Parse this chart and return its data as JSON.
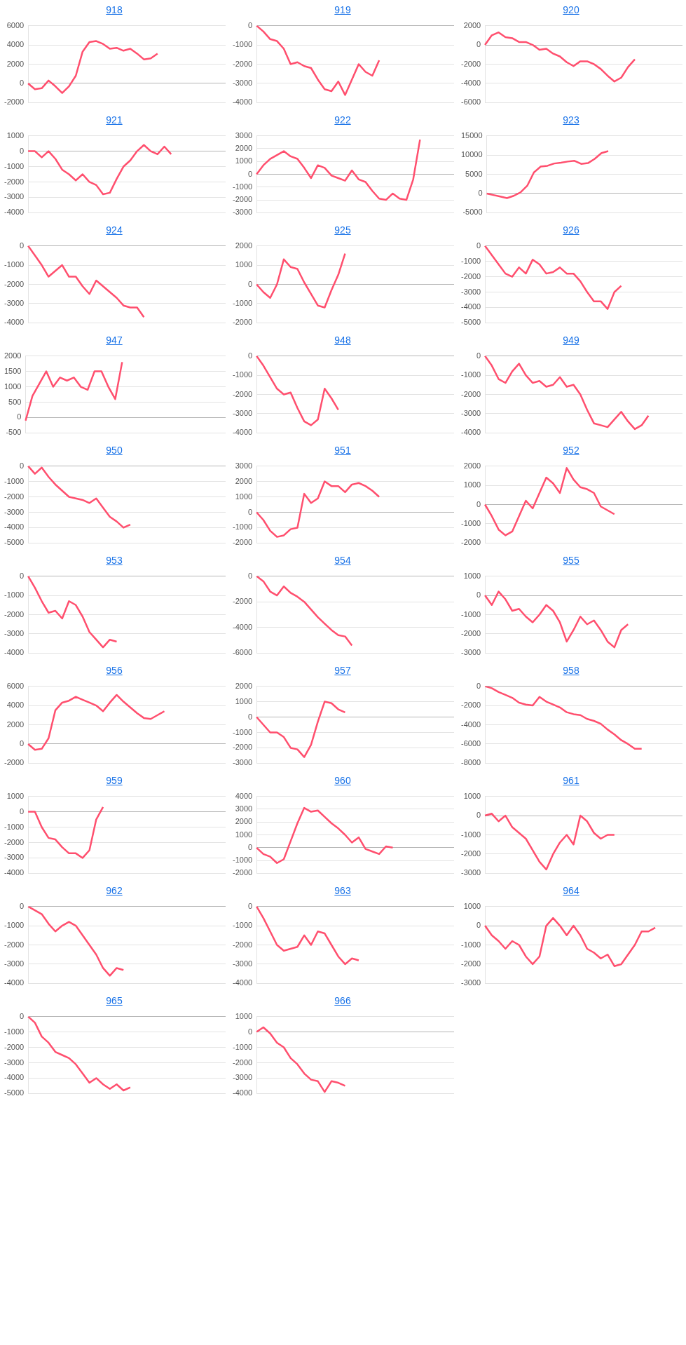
{
  "chart_data": [
    {
      "type": "line",
      "title": "918",
      "color": "#ff4f6e",
      "categories": [
        null,
        null,
        null,
        null,
        null,
        null,
        null,
        null,
        null,
        null,
        null,
        null,
        null,
        null,
        null,
        null,
        null,
        null,
        null,
        null,
        null,
        null,
        null,
        null,
        null,
        null,
        null,
        null,
        null,
        null
      ],
      "values": [
        0,
        -600,
        -500,
        300,
        -300,
        -1000,
        -300,
        800,
        3300,
        4300,
        4400,
        4100,
        3600,
        3700,
        3400,
        3600,
        3100,
        2500,
        2600,
        3100,
        null,
        null,
        null,
        null,
        null,
        null,
        null,
        null,
        null,
        null
      ],
      "ylim": [
        -2000,
        6000
      ],
      "yticks": [
        -2000,
        0,
        2000,
        4000,
        6000
      ],
      "grid": "y",
      "tick_labels": "y"
    },
    {
      "type": "line",
      "title": "919",
      "color": "#ff4f6e",
      "categories": [
        null,
        null,
        null,
        null,
        null,
        null,
        null,
        null,
        null,
        null,
        null,
        null,
        null,
        null,
        null,
        null,
        null,
        null,
        null,
        null,
        null,
        null,
        null,
        null,
        null,
        null,
        null,
        null,
        null,
        null
      ],
      "values": [
        0,
        -300,
        -700,
        -800,
        -1200,
        -2000,
        -1900,
        -2100,
        -2200,
        -2800,
        -3300,
        -3400,
        -2900,
        -3600,
        -2800,
        -2000,
        -2400,
        -2600,
        -1800,
        null,
        null,
        null,
        null,
        null,
        null,
        null,
        null,
        null,
        null,
        null
      ],
      "ylim": [
        -4000,
        0
      ],
      "yticks": [
        -4000,
        -3000,
        -2000,
        -1000,
        0
      ],
      "grid": "y",
      "tick_labels": "y"
    },
    {
      "type": "line",
      "title": "920",
      "color": "#ff4f6e",
      "categories": [
        null,
        null,
        null,
        null,
        null,
        null,
        null,
        null,
        null,
        null,
        null,
        null,
        null,
        null,
        null,
        null,
        null,
        null,
        null,
        null,
        null,
        null,
        null,
        null,
        null,
        null,
        null,
        null,
        null,
        null
      ],
      "values": [
        0,
        1000,
        1300,
        800,
        700,
        300,
        300,
        0,
        -500,
        -400,
        -900,
        -1200,
        -1800,
        -2200,
        -1700,
        -1700,
        -2000,
        -2500,
        -3200,
        -3800,
        -3400,
        -2300,
        -1500,
        null,
        null,
        null,
        null,
        null,
        null,
        null
      ],
      "ylim": [
        -6000,
        2000
      ],
      "yticks": [
        -6000,
        -4000,
        -2000,
        0,
        2000
      ],
      "grid": "y",
      "tick_labels": "y"
    },
    {
      "type": "line",
      "title": "921",
      "color": "#ff4f6e",
      "categories": [
        null,
        null,
        null,
        null,
        null,
        null,
        null,
        null,
        null,
        null,
        null,
        null,
        null,
        null,
        null,
        null,
        null,
        null,
        null,
        null,
        null,
        null,
        null,
        null,
        null,
        null,
        null,
        null,
        null,
        null
      ],
      "values": [
        0,
        0,
        -400,
        0,
        -500,
        -1200,
        -1500,
        -1900,
        -1500,
        -2000,
        -2200,
        -2800,
        -2700,
        -1800,
        -1000,
        -600,
        0,
        400,
        0,
        -200,
        300,
        -200,
        null,
        null,
        null,
        null,
        null,
        null,
        null,
        null
      ],
      "ylim": [
        -4000,
        1000
      ],
      "yticks": [
        -4000,
        -3000,
        -2000,
        -1000,
        0,
        1000
      ],
      "grid": "y",
      "tick_labels": "y"
    },
    {
      "type": "line",
      "title": "922",
      "color": "#ff4f6e",
      "categories": [
        null,
        null,
        null,
        null,
        null,
        null,
        null,
        null,
        null,
        null,
        null,
        null,
        null,
        null,
        null,
        null,
        null,
        null,
        null,
        null,
        null,
        null,
        null,
        null,
        null,
        null,
        null,
        null,
        null,
        null
      ],
      "values": [
        0,
        700,
        1200,
        1500,
        1800,
        1400,
        1200,
        500,
        -300,
        700,
        500,
        -100,
        -300,
        -500,
        300,
        -400,
        -600,
        -1300,
        -1900,
        -2000,
        -1500,
        -1900,
        -2000,
        -400,
        2700,
        null,
        null,
        null,
        null,
        null
      ],
      "ylim": [
        -3000,
        3000
      ],
      "yticks": [
        -3000,
        -2000,
        -1000,
        0,
        1000,
        2000,
        3000
      ],
      "grid": "y",
      "tick_labels": "y"
    },
    {
      "type": "line",
      "title": "923",
      "color": "#ff4f6e",
      "categories": [
        null,
        null,
        null,
        null,
        null,
        null,
        null,
        null,
        null,
        null,
        null,
        null,
        null,
        null,
        null,
        null,
        null,
        null,
        null,
        null,
        null,
        null,
        null,
        null,
        null,
        null,
        null,
        null,
        null,
        null
      ],
      "values": [
        0,
        -400,
        -800,
        -1200,
        -600,
        300,
        2000,
        5500,
        7000,
        7200,
        7800,
        8000,
        8300,
        8500,
        7700,
        7900,
        9000,
        10500,
        11000,
        null,
        null,
        null,
        null,
        null,
        null,
        null,
        null,
        null,
        null,
        null
      ],
      "ylim": [
        -5000,
        15000
      ],
      "yticks": [
        -5000,
        0,
        5000,
        10000,
        15000
      ],
      "grid": "y",
      "tick_labels": "y"
    },
    {
      "type": "line",
      "title": "924",
      "color": "#ff4f6e",
      "categories": [
        null,
        null,
        null,
        null,
        null,
        null,
        null,
        null,
        null,
        null,
        null,
        null,
        null,
        null,
        null,
        null,
        null,
        null,
        null,
        null,
        null,
        null,
        null,
        null,
        null,
        null,
        null,
        null,
        null,
        null
      ],
      "values": [
        0,
        -500,
        -1000,
        -1600,
        -1300,
        -1000,
        -1600,
        -1600,
        -2100,
        -2500,
        -1800,
        -2100,
        -2400,
        -2700,
        -3100,
        -3200,
        -3200,
        -3700,
        null,
        null,
        null,
        null,
        null,
        null,
        null,
        null,
        null,
        null,
        null,
        null
      ],
      "ylim": [
        -4000,
        0
      ],
      "yticks": [
        -4000,
        -3000,
        -2000,
        -1000,
        0
      ],
      "grid": "y",
      "tick_labels": "y"
    },
    {
      "type": "line",
      "title": "925",
      "color": "#ff4f6e",
      "categories": [
        null,
        null,
        null,
        null,
        null,
        null,
        null,
        null,
        null,
        null,
        null,
        null,
        null,
        null,
        null,
        null,
        null,
        null,
        null,
        null,
        null,
        null,
        null,
        null,
        null,
        null,
        null,
        null,
        null,
        null
      ],
      "values": [
        0,
        -400,
        -700,
        0,
        1300,
        900,
        800,
        100,
        -500,
        -1100,
        -1200,
        -300,
        500,
        1600,
        null,
        null,
        null,
        null,
        null,
        null,
        null,
        null,
        null,
        null,
        null,
        null,
        null,
        null,
        null,
        null
      ],
      "ylim": [
        -2000,
        2000
      ],
      "yticks": [
        -2000,
        -1000,
        0,
        1000,
        2000
      ],
      "grid": "y",
      "tick_labels": "y"
    },
    {
      "type": "line",
      "title": "926",
      "color": "#ff4f6e",
      "categories": [
        null,
        null,
        null,
        null,
        null,
        null,
        null,
        null,
        null,
        null,
        null,
        null,
        null,
        null,
        null,
        null,
        null,
        null,
        null,
        null,
        null,
        null,
        null,
        null,
        null,
        null,
        null,
        null,
        null,
        null
      ],
      "values": [
        0,
        -600,
        -1200,
        -1800,
        -2000,
        -1400,
        -1800,
        -900,
        -1200,
        -1800,
        -1700,
        -1400,
        -1800,
        -1800,
        -2300,
        -3000,
        -3600,
        -3600,
        -4100,
        -3000,
        -2600,
        null,
        null,
        null,
        null,
        null,
        null,
        null,
        null,
        null
      ],
      "ylim": [
        -5000,
        0
      ],
      "yticks": [
        -5000,
        -4000,
        -3000,
        -2000,
        -1000,
        0
      ],
      "grid": "y",
      "tick_labels": "y"
    },
    {
      "type": "line",
      "title": "947",
      "color": "#ff4f6e",
      "categories": [
        null,
        null,
        null,
        null,
        null,
        null,
        null,
        null,
        null,
        null,
        null,
        null,
        null,
        null,
        null,
        null,
        null,
        null,
        null,
        null,
        null,
        null,
        null,
        null,
        null,
        null,
        null,
        null,
        null,
        null
      ],
      "values": [
        -100,
        700,
        1100,
        1500,
        1000,
        1300,
        1200,
        1300,
        1000,
        900,
        1500,
        1500,
        1000,
        600,
        1800,
        null,
        null,
        null,
        null,
        null,
        null,
        null,
        null,
        null,
        null,
        null,
        null,
        null,
        null,
        null
      ],
      "ylim": [
        -500,
        2000
      ],
      "yticks": [
        -500,
        0,
        500,
        1000,
        1500,
        2000
      ],
      "grid": "y",
      "tick_labels": "y"
    },
    {
      "type": "line",
      "title": "948",
      "color": "#ff4f6e",
      "categories": [
        null,
        null,
        null,
        null,
        null,
        null,
        null,
        null,
        null,
        null,
        null,
        null,
        null,
        null,
        null,
        null,
        null,
        null,
        null,
        null,
        null,
        null,
        null,
        null,
        null,
        null,
        null,
        null,
        null,
        null
      ],
      "values": [
        0,
        -500,
        -1100,
        -1700,
        -2000,
        -1900,
        -2700,
        -3400,
        -3600,
        -3300,
        -1700,
        -2200,
        -2800,
        null,
        null,
        null,
        null,
        null,
        null,
        null,
        null,
        null,
        null,
        null,
        null,
        null,
        null,
        null,
        null,
        null
      ],
      "ylim": [
        -4000,
        0
      ],
      "yticks": [
        -4000,
        -3000,
        -2000,
        -1000,
        0
      ],
      "grid": "y",
      "tick_labels": "y"
    },
    {
      "type": "line",
      "title": "949",
      "color": "#ff4f6e",
      "categories": [
        null,
        null,
        null,
        null,
        null,
        null,
        null,
        null,
        null,
        null,
        null,
        null,
        null,
        null,
        null,
        null,
        null,
        null,
        null,
        null,
        null,
        null,
        null,
        null,
        null,
        null,
        null,
        null,
        null,
        null
      ],
      "values": [
        0,
        -500,
        -1200,
        -1400,
        -800,
        -400,
        -1000,
        -1400,
        -1300,
        -1600,
        -1500,
        -1100,
        -1600,
        -1500,
        -2000,
        -2800,
        -3500,
        -3600,
        -3700,
        -3300,
        -2900,
        -3400,
        -3800,
        -3600,
        -3100,
        null,
        null,
        null,
        null,
        null
      ],
      "ylim": [
        -4000,
        0
      ],
      "yticks": [
        -4000,
        -3000,
        -2000,
        -1000,
        0
      ],
      "grid": "y",
      "tick_labels": "y"
    },
    {
      "type": "line",
      "title": "950",
      "color": "#ff4f6e",
      "categories": [
        null,
        null,
        null,
        null,
        null,
        null,
        null,
        null,
        null,
        null,
        null,
        null,
        null,
        null,
        null,
        null,
        null,
        null,
        null,
        null,
        null,
        null,
        null,
        null,
        null,
        null,
        null,
        null,
        null,
        null
      ],
      "values": [
        0,
        -500,
        -100,
        -700,
        -1200,
        -1600,
        -2000,
        -2100,
        -2200,
        -2400,
        -2100,
        -2700,
        -3300,
        -3600,
        -4000,
        -3800,
        null,
        null,
        null,
        null,
        null,
        null,
        null,
        null,
        null,
        null,
        null,
        null,
        null,
        null
      ],
      "ylim": [
        -5000,
        0
      ],
      "yticks": [
        -5000,
        -4000,
        -3000,
        -2000,
        -1000,
        0
      ],
      "grid": "y",
      "tick_labels": "y"
    },
    {
      "type": "line",
      "title": "951",
      "color": "#ff4f6e",
      "categories": [
        null,
        null,
        null,
        null,
        null,
        null,
        null,
        null,
        null,
        null,
        null,
        null,
        null,
        null,
        null,
        null,
        null,
        null,
        null,
        null,
        null,
        null,
        null,
        null,
        null,
        null,
        null,
        null,
        null,
        null
      ],
      "values": [
        0,
        -500,
        -1200,
        -1600,
        -1500,
        -1100,
        -1000,
        1200,
        600,
        900,
        2000,
        1700,
        1700,
        1300,
        1800,
        1900,
        1700,
        1400,
        1000,
        null,
        null,
        null,
        null,
        null,
        null,
        null,
        null,
        null,
        null,
        null
      ],
      "ylim": [
        -2000,
        3000
      ],
      "yticks": [
        -2000,
        -1000,
        0,
        1000,
        2000,
        3000
      ],
      "grid": "y",
      "tick_labels": "y"
    },
    {
      "type": "line",
      "title": "952",
      "color": "#ff4f6e",
      "categories": [
        null,
        null,
        null,
        null,
        null,
        null,
        null,
        null,
        null,
        null,
        null,
        null,
        null,
        null,
        null,
        null,
        null,
        null,
        null,
        null,
        null,
        null,
        null,
        null,
        null,
        null,
        null,
        null,
        null,
        null
      ],
      "values": [
        0,
        -600,
        -1300,
        -1600,
        -1400,
        -600,
        200,
        -200,
        600,
        1400,
        1100,
        600,
        1900,
        1300,
        900,
        800,
        600,
        -100,
        -300,
        -500,
        null,
        null,
        null,
        null,
        null,
        null,
        null,
        null,
        null,
        null
      ],
      "ylim": [
        -2000,
        2000
      ],
      "yticks": [
        -2000,
        -1000,
        0,
        1000,
        2000
      ],
      "grid": "y",
      "tick_labels": "y"
    },
    {
      "type": "line",
      "title": "953",
      "color": "#ff4f6e",
      "categories": [
        null,
        null,
        null,
        null,
        null,
        null,
        null,
        null,
        null,
        null,
        null,
        null,
        null,
        null,
        null,
        null,
        null,
        null,
        null,
        null,
        null,
        null,
        null,
        null,
        null,
        null,
        null,
        null,
        null,
        null
      ],
      "values": [
        0,
        -600,
        -1300,
        -1900,
        -1800,
        -2200,
        -1300,
        -1500,
        -2100,
        -2900,
        -3300,
        -3700,
        -3300,
        -3400,
        null,
        null,
        null,
        null,
        null,
        null,
        null,
        null,
        null,
        null,
        null,
        null,
        null,
        null,
        null,
        null
      ],
      "ylim": [
        -4000,
        0
      ],
      "yticks": [
        -4000,
        -3000,
        -2000,
        -1000,
        0
      ],
      "grid": "y",
      "tick_labels": "y"
    },
    {
      "type": "line",
      "title": "954",
      "color": "#ff4f6e",
      "categories": [
        null,
        null,
        null,
        null,
        null,
        null,
        null,
        null,
        null,
        null,
        null,
        null,
        null,
        null,
        null,
        null,
        null,
        null,
        null,
        null,
        null,
        null,
        null,
        null,
        null,
        null,
        null,
        null,
        null,
        null
      ],
      "values": [
        0,
        -400,
        -1200,
        -1500,
        -800,
        -1300,
        -1600,
        -2000,
        -2600,
        -3200,
        -3700,
        -4200,
        -4600,
        -4700,
        -5400,
        null,
        null,
        null,
        null,
        null,
        null,
        null,
        null,
        null,
        null,
        null,
        null,
        null,
        null,
        null
      ],
      "ylim": [
        -6000,
        0
      ],
      "yticks": [
        -6000,
        -4000,
        -2000,
        0
      ],
      "grid": "y",
      "tick_labels": "y"
    },
    {
      "type": "line",
      "title": "955",
      "color": "#ff4f6e",
      "categories": [
        null,
        null,
        null,
        null,
        null,
        null,
        null,
        null,
        null,
        null,
        null,
        null,
        null,
        null,
        null,
        null,
        null,
        null,
        null,
        null,
        null,
        null,
        null,
        null,
        null,
        null,
        null,
        null,
        null,
        null
      ],
      "values": [
        0,
        -500,
        200,
        -200,
        -800,
        -700,
        -1100,
        -1400,
        -1000,
        -500,
        -800,
        -1400,
        -2400,
        -1800,
        -1100,
        -1500,
        -1300,
        -1800,
        -2400,
        -2700,
        -1800,
        -1500,
        null,
        null,
        null,
        null,
        null,
        null,
        null,
        null
      ],
      "ylim": [
        -3000,
        1000
      ],
      "yticks": [
        -3000,
        -2000,
        -1000,
        0,
        1000
      ],
      "grid": "y",
      "tick_labels": "y"
    },
    {
      "type": "line",
      "title": "956",
      "color": "#ff4f6e",
      "categories": [
        null,
        null,
        null,
        null,
        null,
        null,
        null,
        null,
        null,
        null,
        null,
        null,
        null,
        null,
        null,
        null,
        null,
        null,
        null,
        null,
        null,
        null,
        null,
        null,
        null,
        null,
        null,
        null,
        null,
        null
      ],
      "values": [
        0,
        -600,
        -500,
        600,
        3500,
        4300,
        4500,
        4900,
        4600,
        4300,
        4000,
        3400,
        4300,
        5100,
        4400,
        3800,
        3200,
        2700,
        2600,
        3000,
        3400,
        null,
        null,
        null,
        null,
        null,
        null,
        null,
        null,
        null
      ],
      "ylim": [
        -2000,
        6000
      ],
      "yticks": [
        -2000,
        0,
        2000,
        4000,
        6000
      ],
      "grid": "y",
      "tick_labels": "y"
    },
    {
      "type": "line",
      "title": "957",
      "color": "#ff4f6e",
      "categories": [
        null,
        null,
        null,
        null,
        null,
        null,
        null,
        null,
        null,
        null,
        null,
        null,
        null,
        null,
        null,
        null,
        null,
        null,
        null,
        null,
        null,
        null,
        null,
        null,
        null,
        null,
        null,
        null,
        null,
        null
      ],
      "values": [
        0,
        -500,
        -1000,
        -1000,
        -1300,
        -2000,
        -2100,
        -2600,
        -1800,
        -300,
        1000,
        900,
        500,
        300,
        null,
        null,
        null,
        null,
        null,
        null,
        null,
        null,
        null,
        null,
        null,
        null,
        null,
        null,
        null,
        null
      ],
      "ylim": [
        -3000,
        2000
      ],
      "yticks": [
        -3000,
        -2000,
        -1000,
        0,
        1000,
        2000
      ],
      "grid": "y",
      "tick_labels": "y"
    },
    {
      "type": "line",
      "title": "958",
      "color": "#ff4f6e",
      "categories": [
        null,
        null,
        null,
        null,
        null,
        null,
        null,
        null,
        null,
        null,
        null,
        null,
        null,
        null,
        null,
        null,
        null,
        null,
        null,
        null,
        null,
        null,
        null,
        null,
        null,
        null,
        null,
        null,
        null,
        null
      ],
      "values": [
        0,
        -200,
        -600,
        -900,
        -1200,
        -1700,
        -1900,
        -2000,
        -1100,
        -1600,
        -1900,
        -2200,
        -2700,
        -2900,
        -3000,
        -3400,
        -3600,
        -3900,
        -4500,
        -5000,
        -5600,
        -6000,
        -6500,
        -6500,
        null,
        null,
        null,
        null,
        null,
        null
      ],
      "ylim": [
        -8000,
        0
      ],
      "yticks": [
        -8000,
        -6000,
        -4000,
        -2000,
        0
      ],
      "grid": "y",
      "tick_labels": "y"
    },
    {
      "type": "line",
      "title": "959",
      "color": "#ff4f6e",
      "categories": [
        null,
        null,
        null,
        null,
        null,
        null,
        null,
        null,
        null,
        null,
        null,
        null,
        null,
        null,
        null,
        null,
        null,
        null,
        null,
        null,
        null,
        null,
        null,
        null,
        null,
        null,
        null,
        null,
        null,
        null
      ],
      "values": [
        0,
        0,
        -1000,
        -1700,
        -1800,
        -2300,
        -2700,
        -2700,
        -3000,
        -2500,
        -500,
        300,
        null,
        null,
        null,
        null,
        null,
        null,
        null,
        null,
        null,
        null,
        null,
        null,
        null,
        null,
        null,
        null,
        null,
        null
      ],
      "ylim": [
        -4000,
        1000
      ],
      "yticks": [
        -4000,
        -3000,
        -2000,
        -1000,
        0,
        1000
      ],
      "grid": "y",
      "tick_labels": "y"
    },
    {
      "type": "line",
      "title": "960",
      "color": "#ff4f6e",
      "categories": [
        null,
        null,
        null,
        null,
        null,
        null,
        null,
        null,
        null,
        null,
        null,
        null,
        null,
        null,
        null,
        null,
        null,
        null,
        null,
        null,
        null,
        null,
        null,
        null,
        null,
        null,
        null,
        null,
        null,
        null
      ],
      "values": [
        0,
        -500,
        -700,
        -1200,
        -900,
        500,
        1900,
        3100,
        2800,
        2900,
        2400,
        1900,
        1500,
        1000,
        400,
        800,
        -100,
        -300,
        -500,
        100,
        0,
        null,
        null,
        null,
        null,
        null,
        null,
        null,
        null,
        null
      ],
      "ylim": [
        -2000,
        4000
      ],
      "yticks": [
        -2000,
        -1000,
        0,
        1000,
        2000,
        3000,
        4000
      ],
      "grid": "y",
      "tick_labels": "y"
    },
    {
      "type": "line",
      "title": "961",
      "color": "#ff4f6e",
      "categories": [
        null,
        null,
        null,
        null,
        null,
        null,
        null,
        null,
        null,
        null,
        null,
        null,
        null,
        null,
        null,
        null,
        null,
        null,
        null,
        null,
        null,
        null,
        null,
        null,
        null,
        null,
        null,
        null,
        null,
        null
      ],
      "values": [
        0,
        100,
        -300,
        0,
        -600,
        -900,
        -1200,
        -1800,
        -2400,
        -2800,
        -2000,
        -1400,
        -1000,
        -1500,
        0,
        -300,
        -900,
        -1200,
        -1000,
        -1000,
        null,
        null,
        null,
        null,
        null,
        null,
        null,
        null,
        null,
        null
      ],
      "ylim": [
        -3000,
        1000
      ],
      "yticks": [
        -3000,
        -2000,
        -1000,
        0,
        1000
      ],
      "grid": "y",
      "tick_labels": "y"
    },
    {
      "type": "line",
      "title": "962",
      "color": "#ff4f6e",
      "categories": [
        null,
        null,
        null,
        null,
        null,
        null,
        null,
        null,
        null,
        null,
        null,
        null,
        null,
        null,
        null,
        null,
        null,
        null,
        null,
        null,
        null,
        null,
        null,
        null,
        null,
        null,
        null,
        null,
        null,
        null
      ],
      "values": [
        0,
        -200,
        -400,
        -900,
        -1300,
        -1000,
        -800,
        -1000,
        -1500,
        -2000,
        -2500,
        -3200,
        -3600,
        -3200,
        -3300,
        null,
        null,
        null,
        null,
        null,
        null,
        null,
        null,
        null,
        null,
        null,
        null,
        null,
        null,
        null
      ],
      "ylim": [
        -4000,
        0
      ],
      "yticks": [
        -4000,
        -3000,
        -2000,
        -1000,
        0
      ],
      "grid": "y",
      "tick_labels": "y"
    },
    {
      "type": "line",
      "title": "963",
      "color": "#ff4f6e",
      "categories": [
        null,
        null,
        null,
        null,
        null,
        null,
        null,
        null,
        null,
        null,
        null,
        null,
        null,
        null,
        null,
        null,
        null,
        null,
        null,
        null,
        null,
        null,
        null,
        null,
        null,
        null,
        null,
        null,
        null,
        null
      ],
      "values": [
        0,
        -600,
        -1300,
        -2000,
        -2300,
        -2200,
        -2100,
        -1500,
        -2000,
        -1300,
        -1400,
        -2000,
        -2600,
        -3000,
        -2700,
        -2800,
        null,
        null,
        null,
        null,
        null,
        null,
        null,
        null,
        null,
        null,
        null,
        null,
        null,
        null
      ],
      "ylim": [
        -4000,
        0
      ],
      "yticks": [
        -4000,
        -3000,
        -2000,
        -1000,
        0
      ],
      "grid": "y",
      "tick_labels": "y"
    },
    {
      "type": "line",
      "title": "964",
      "color": "#ff4f6e",
      "categories": [
        null,
        null,
        null,
        null,
        null,
        null,
        null,
        null,
        null,
        null,
        null,
        null,
        null,
        null,
        null,
        null,
        null,
        null,
        null,
        null,
        null,
        null,
        null,
        null,
        null,
        null,
        null,
        null,
        null,
        null
      ],
      "values": [
        0,
        -500,
        -800,
        -1200,
        -800,
        -1000,
        -1600,
        -2000,
        -1600,
        0,
        400,
        0,
        -500,
        0,
        -500,
        -1200,
        -1400,
        -1700,
        -1500,
        -2100,
        -2000,
        -1500,
        -1000,
        -300,
        -300,
        -100,
        null,
        null,
        null,
        null
      ],
      "ylim": [
        -3000,
        1000
      ],
      "yticks": [
        -3000,
        -2000,
        -1000,
        0,
        1000
      ],
      "grid": "y",
      "tick_labels": "y"
    },
    {
      "type": "line",
      "title": "965",
      "color": "#ff4f6e",
      "categories": [
        null,
        null,
        null,
        null,
        null,
        null,
        null,
        null,
        null,
        null,
        null,
        null,
        null,
        null,
        null,
        null,
        null,
        null,
        null,
        null,
        null,
        null,
        null,
        null,
        null,
        null,
        null,
        null,
        null,
        null
      ],
      "values": [
        0,
        -400,
        -1300,
        -1700,
        -2300,
        -2500,
        -2700,
        -3100,
        -3700,
        -4300,
        -4000,
        -4400,
        -4700,
        -4400,
        -4800,
        -4600,
        null,
        null,
        null,
        null,
        null,
        null,
        null,
        null,
        null,
        null,
        null,
        null,
        null,
        null
      ],
      "ylim": [
        -5000,
        0
      ],
      "yticks": [
        -5000,
        -4000,
        -3000,
        -2000,
        -1000,
        0
      ],
      "grid": "y",
      "tick_labels": "y"
    },
    {
      "type": "line",
      "title": "966",
      "color": "#ff4f6e",
      "categories": [
        null,
        null,
        null,
        null,
        null,
        null,
        null,
        null,
        null,
        null,
        null,
        null,
        null,
        null,
        null,
        null,
        null,
        null,
        null,
        null,
        null,
        null,
        null,
        null,
        null,
        null,
        null,
        null,
        null,
        null
      ],
      "values": [
        0,
        300,
        -100,
        -700,
        -1000,
        -1700,
        -2100,
        -2700,
        -3100,
        -3200,
        -3900,
        -3200,
        -3300,
        -3500,
        null,
        null,
        null,
        null,
        null,
        null,
        null,
        null,
        null,
        null,
        null,
        null,
        null,
        null,
        null,
        null
      ],
      "ylim": [
        -4000,
        1000
      ],
      "yticks": [
        -4000,
        -3000,
        -2000,
        -1000,
        0,
        1000
      ],
      "grid": "y",
      "tick_labels": "y"
    }
  ]
}
